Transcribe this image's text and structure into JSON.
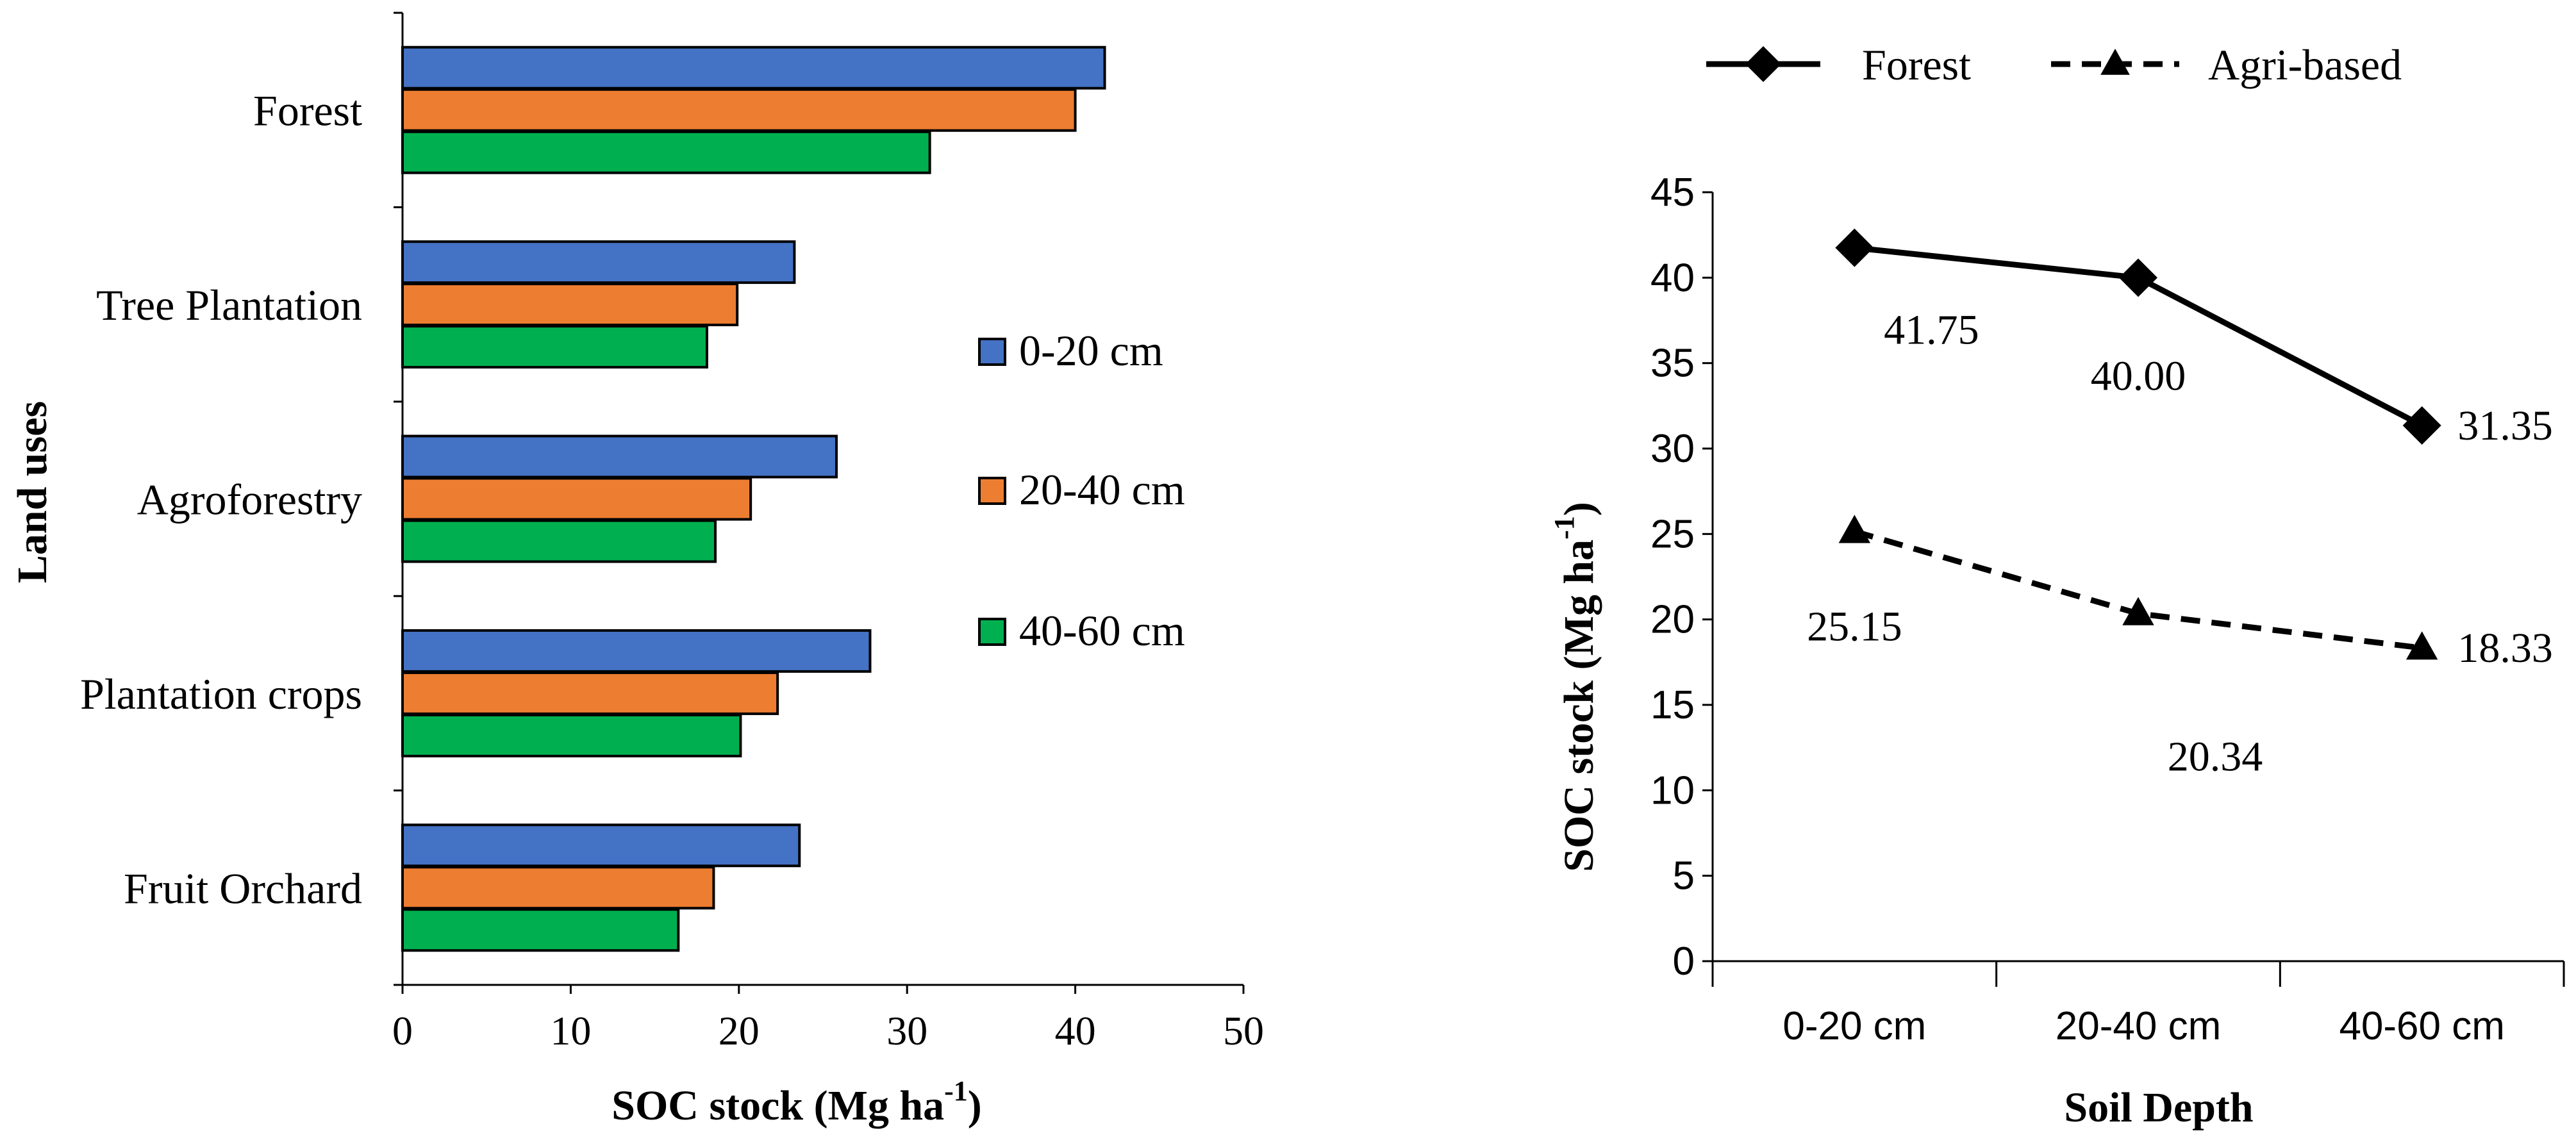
{
  "chart_data": [
    {
      "type": "bar",
      "orientation": "horizontal",
      "categories": [
        "Forest",
        "Tree Plantation",
        "Agroforestry",
        "Plantation crops",
        "Fruit Orchard"
      ],
      "series": [
        {
          "name": "0-20 cm",
          "color": "#4472C4",
          "values": [
            41.75,
            23.3,
            25.8,
            27.8,
            23.6
          ]
        },
        {
          "name": "20-40 cm",
          "color": "#ED7D31",
          "values": [
            40.0,
            19.9,
            20.7,
            22.3,
            18.5
          ]
        },
        {
          "name": "40-60 cm",
          "color": "#00B050",
          "values": [
            31.35,
            18.1,
            18.6,
            20.1,
            16.4
          ]
        }
      ],
      "xlabel": "SOC stock (Mg ha",
      "xlabel_sup": "-1",
      "xlabel_end": ")",
      "ylabel": "Land uses",
      "xlim": [
        0,
        50
      ],
      "xticks": [
        0,
        10,
        20,
        30,
        40,
        50
      ],
      "legend_position": "right"
    },
    {
      "type": "line",
      "categories": [
        "0-20 cm",
        "20-40 cm",
        "40-60 cm"
      ],
      "series": [
        {
          "name": "Forest",
          "style": "solid",
          "marker": "diamond",
          "color": "#000000",
          "values": [
            41.75,
            40.0,
            31.35
          ],
          "labels": [
            "41.75",
            "40.00",
            "31.35"
          ]
        },
        {
          "name": "Agri-based",
          "style": "dashed",
          "marker": "triangle",
          "color": "#000000",
          "values": [
            25.15,
            20.34,
            18.33
          ],
          "labels": [
            "25.15",
            "20.34",
            "18.33"
          ]
        }
      ],
      "xlabel": "Soil Depth",
      "ylabel": "SOC stock (Mg ha",
      "ylabel_sup": "-1",
      "ylabel_end": ")",
      "ylim": [
        0,
        45
      ],
      "yticks": [
        0,
        5,
        10,
        15,
        20,
        25,
        30,
        35,
        40,
        45
      ],
      "legend_position": "top"
    }
  ]
}
